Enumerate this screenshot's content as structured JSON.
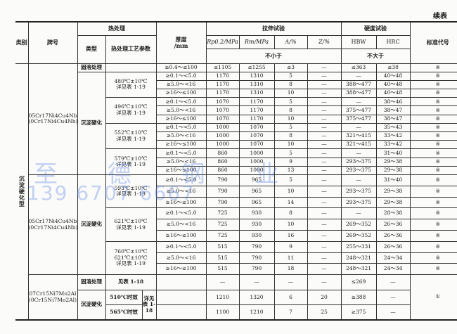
{
  "continued_label": "续表",
  "watermark": {
    "company": "至 德 钢 业",
    "phone": "139 6707 6667"
  },
  "header": {
    "category": "类别",
    "grade": "牌号",
    "heat_treatment": "热处理",
    "type": "类型",
    "params": "热处理工艺参数",
    "thickness": "厚度\n/mm",
    "tensile": "拉伸试验",
    "hardness": "硬度试验",
    "rp": "Rp0.2/MPa",
    "rm": "Rm/MPa",
    "a": "A/%",
    "z": "Z/%",
    "hbw": "HBW",
    "hrc": "HRC",
    "standard": "标准代号",
    "not_less": "不小于",
    "not_more": "不大于"
  },
  "category_value": "沉淀硬化型",
  "blocks": [
    {
      "grade": "05Cr17Ni4Cu4Nb",
      "grade_old": "(0Cr17Ni4Cu4Nb)",
      "solution": {
        "type": "固溶处理",
        "values": [
          "≥0.4～≤100",
          "≤1105",
          "≤1255",
          "≤3",
          "—",
          "≤363",
          "≤38",
          "④"
        ]
      },
      "precip_type": "沉淀硬化",
      "groups": [
        {
          "params": [
            "480℃±10℃",
            "详见表 1-19"
          ],
          "rows": [
            [
              "≥0.1～<5.0",
              "1170",
              "1310",
              "5",
              "—",
              "—",
              "40～48",
              "④"
            ],
            [
              "≥5.0～<16",
              "1170",
              "1310",
              "8",
              "—",
              "388～477",
              "40～48",
              "④"
            ],
            [
              "≥16～≤100",
              "1170",
              "1310",
              "10",
              "—",
              "388～477",
              "40～48",
              "④"
            ]
          ]
        },
        {
          "params": [
            "496℃±10℃",
            "详见表 1-19"
          ],
          "rows": [
            [
              "≥0.1～<5.0",
              "1070",
              "1170",
              "5",
              "—",
              "—",
              "38～46",
              "④"
            ],
            [
              "≥5.0～<16",
              "1070",
              "1170",
              "8",
              "—",
              "375～477",
              "38～47",
              "④"
            ],
            [
              "≥16～≤100",
              "1070",
              "1170",
              "10",
              "—",
              "375～477",
              "38～47",
              "④"
            ]
          ]
        },
        {
          "params": [
            "552℃±10℃",
            "详见表 1-19"
          ],
          "rows": [
            [
              "≥0.1～<5.0",
              "1000",
              "1070",
              "5",
              "—",
              "—",
              "35～43",
              "④"
            ],
            [
              "≥5.0～<16",
              "1000",
              "1070",
              "8",
              "—",
              "321～415",
              "33～42",
              "④"
            ],
            [
              "≥16～≤100",
              "1000",
              "1070",
              "10",
              "—",
              "321～415",
              "33～42",
              "④"
            ]
          ]
        },
        {
          "params": [
            "579℃±10℃",
            "详见表 1-19"
          ],
          "rows": [
            [
              "≥0.1～<5.0",
              "860",
              "1000",
              "5",
              "—",
              "—",
              "31～40",
              "④"
            ],
            [
              "≥5.0～<16",
              "860",
              "1000",
              "9",
              "—",
              "293～375",
              "29～38",
              "④"
            ],
            [
              "≥16～≤100",
              "860",
              "1000",
              "13",
              "—",
              "293～375",
              "29～38",
              "④"
            ]
          ]
        }
      ]
    },
    {
      "grade": "05Cr17Ni4Cu4Nb",
      "grade_old": "(0Cr17Ni4Cu4Nb)",
      "precip_type": "沉淀硬化",
      "groups": [
        {
          "params": [
            "593℃±10℃",
            "详见表 1-19"
          ],
          "rows": [
            [
              "≥0.1～<5.0",
              "790",
              "965",
              "5",
              "—",
              "—",
              "31～40",
              "④"
            ],
            [
              "≥5.0～<16",
              "790",
              "965",
              "10",
              "—",
              "293～375",
              "29～38",
              "④"
            ],
            [
              "≥16～≤100",
              "790",
              "965",
              "14",
              "—",
              "293～375",
              "29～38",
              "④"
            ]
          ]
        },
        {
          "params": [
            "621℃±10℃",
            "详见表 1-19"
          ],
          "rows": [
            [
              "≥0.1～<5.0",
              "725",
              "930",
              "8",
              "—",
              "—",
              "28～38",
              "④"
            ],
            [
              "≥5.0～<16",
              "725",
              "930",
              "10",
              "—",
              "269～352",
              "26～36",
              "④"
            ],
            [
              "≥16～≤100",
              "725",
              "930",
              "16",
              "—",
              "269～352",
              "26～36",
              "④"
            ]
          ]
        },
        {
          "params": [
            "760℃±10℃",
            "621℃±10℃",
            "详见表 1-19"
          ],
          "rows": [
            [
              "≥0.1～<5.0",
              "515",
              "790",
              "9",
              "—",
              "255～331",
              "26～36",
              "④"
            ],
            [
              "≥5.0～<16",
              "515",
              "790",
              "11",
              "—",
              "248～321",
              "24～34",
              "④"
            ],
            [
              "≥16～≤100",
              "515",
              "790",
              "18",
              "—",
              "248～321",
              "24～34",
              "④"
            ]
          ]
        }
      ]
    },
    {
      "grade": "07Cr15Ni7Mo2Al",
      "grade_old": "(0Cr15Ni7Mo2Al)",
      "standard": "①",
      "solution": {
        "type": "固溶处理",
        "params": "见表 1-18",
        "thickness": "",
        "values": [
          "—",
          "—",
          "—",
          "—",
          "≤269",
          "—"
        ]
      },
      "precip_type": "沉淀硬化",
      "ref": "详见表 1-18",
      "aging": [
        {
          "params": "510℃时效",
          "thickness": "",
          "values": [
            "1210",
            "1320",
            "6",
            "20",
            "≥388",
            "—"
          ]
        },
        {
          "params": "565℃时效",
          "thickness": "",
          "values": [
            "1100",
            "1210",
            "7",
            "25",
            "≥375",
            "—"
          ]
        }
      ]
    }
  ]
}
